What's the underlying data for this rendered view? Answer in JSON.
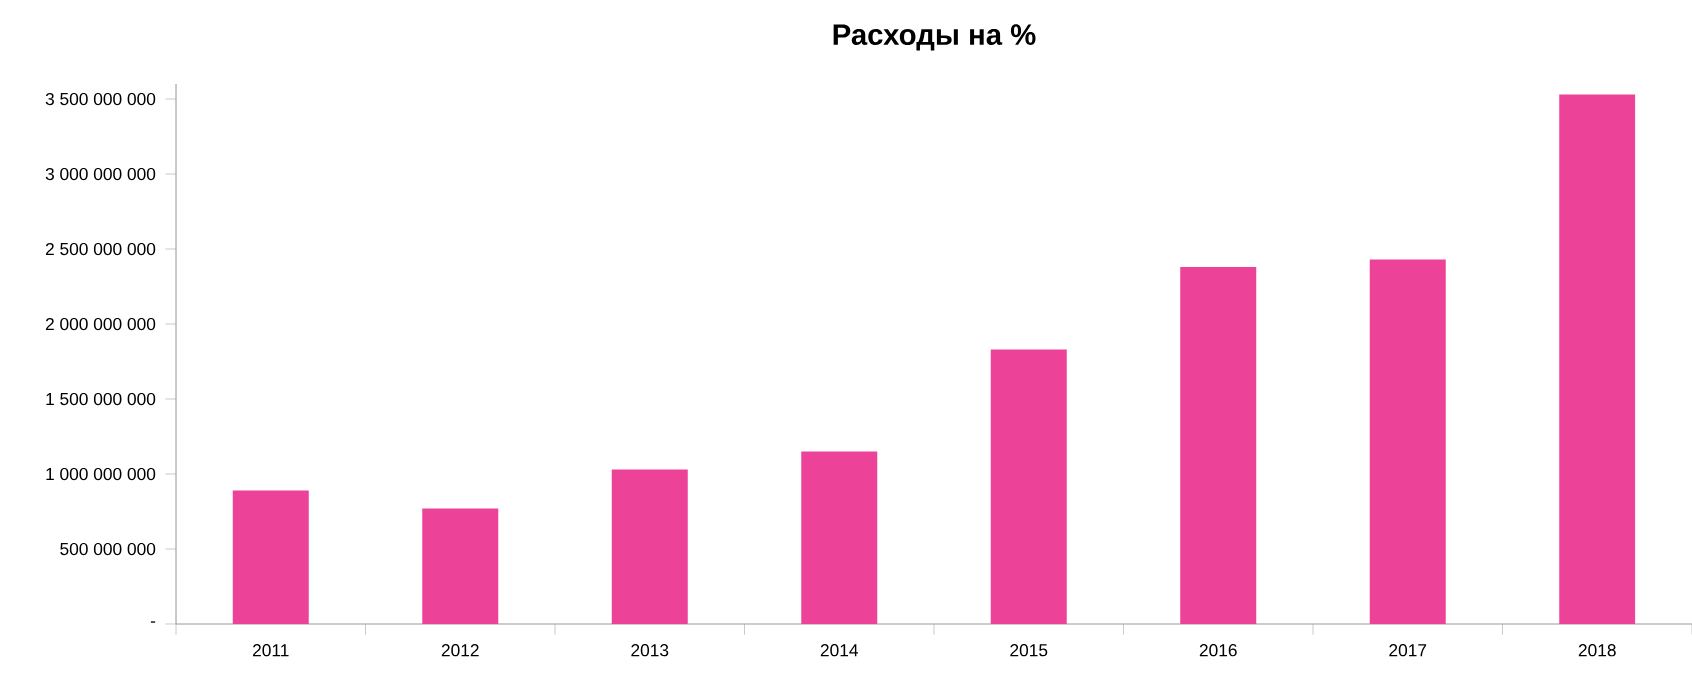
{
  "chart_data": {
    "type": "bar",
    "title": "Расходы на %",
    "categories": [
      "2011",
      "2012",
      "2013",
      "2014",
      "2015",
      "2016",
      "2017",
      "2018"
    ],
    "values": [
      890000000,
      770000000,
      1030000000,
      1150000000,
      1830000000,
      2380000000,
      2430000000,
      3530000000
    ],
    "color": "#ec4399",
    "ylim": [
      0,
      3600000000
    ],
    "yticks": [
      {
        "value": 0,
        "label": "-"
      },
      {
        "value": 500000000,
        "label": "500 000 000"
      },
      {
        "value": 1000000000,
        "label": "1 000 000 000"
      },
      {
        "value": 1500000000,
        "label": "1 500 000 000"
      },
      {
        "value": 2000000000,
        "label": "2 000 000 000"
      },
      {
        "value": 2500000000,
        "label": "2 500 000 000"
      },
      {
        "value": 3000000000,
        "label": "3 000 000 000"
      },
      {
        "value": 3500000000,
        "label": "3 500 000 000"
      }
    ],
    "grid": false
  }
}
